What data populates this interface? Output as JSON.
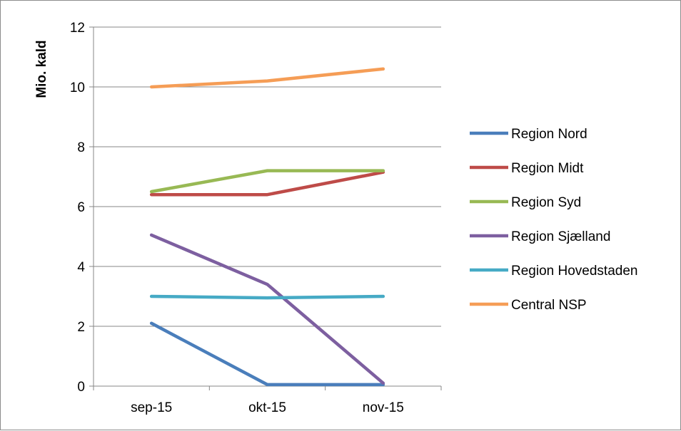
{
  "chart_data": {
    "type": "line",
    "title": "",
    "xlabel": "",
    "ylabel": "Mio. kald",
    "categories": [
      "sep-15",
      "okt-15",
      "nov-15"
    ],
    "ylim": [
      0,
      12
    ],
    "yticks": [
      0,
      2,
      4,
      6,
      8,
      10,
      12
    ],
    "grid": true,
    "legend_position": "right",
    "series": [
      {
        "name": "Region Nord",
        "values": [
          2.1,
          0.05,
          0.05
        ],
        "color": "#4a7ebb"
      },
      {
        "name": "Region Midt",
        "values": [
          6.4,
          6.4,
          7.15
        ],
        "color": "#be4b48"
      },
      {
        "name": "Region Syd",
        "values": [
          6.5,
          7.2,
          7.2
        ],
        "color": "#98b954"
      },
      {
        "name": "Region Sjælland",
        "values": [
          5.05,
          3.4,
          0.1
        ],
        "color": "#7d5fa0"
      },
      {
        "name": "Region Hovedstaden",
        "values": [
          3.0,
          2.95,
          3.0
        ],
        "color": "#46aac5"
      },
      {
        "name": "Central NSP",
        "values": [
          10.0,
          10.2,
          10.6
        ],
        "color": "#f59d56"
      }
    ]
  }
}
